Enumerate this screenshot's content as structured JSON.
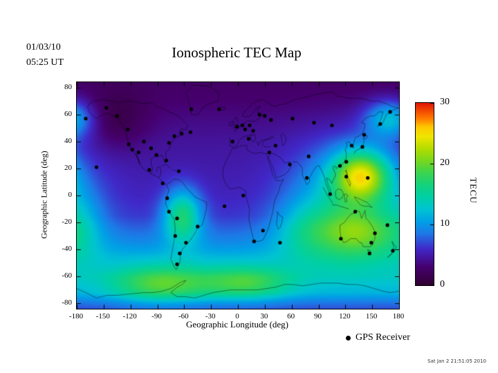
{
  "header": {
    "date": "01/03/10",
    "time": "05:25 UT",
    "title": "Ionospheric TEC Map"
  },
  "axes": {
    "x_label": "Geographic Longitude (deg)",
    "y_label": "Geographic Latitude (deg)",
    "x_ticks": [
      -180,
      -150,
      -120,
      -90,
      -60,
      -30,
      0,
      30,
      60,
      90,
      120,
      150,
      180
    ],
    "y_ticks": [
      -80,
      -60,
      -40,
      -20,
      0,
      20,
      40,
      60,
      80
    ]
  },
  "colorbar": {
    "label": "TECU",
    "min": 0,
    "max": 30,
    "ticks": [
      0,
      10,
      20,
      30
    ]
  },
  "legend": {
    "label": "GPS Receiver"
  },
  "footer": {
    "timestamp": "Sat Jan 2 21:51:05 2010"
  },
  "chart_data": {
    "type": "heatmap",
    "title": "Ionospheric TEC Map",
    "xlabel": "Geographic Longitude (deg)",
    "ylabel": "Geographic Latitude (deg)",
    "units": "TECU",
    "xlim": [
      -180,
      180
    ],
    "ylim": [
      -84,
      84
    ],
    "colorbar_range": [
      0,
      30
    ],
    "colormap_stops": [
      [
        0,
        "#300030"
      ],
      [
        3,
        "#46006e"
      ],
      [
        6,
        "#4028c8"
      ],
      [
        8.5,
        "#1e78e6"
      ],
      [
        10.5,
        "#00a0e6"
      ],
      [
        12.5,
        "#00c3d2"
      ],
      [
        14.5,
        "#00cfa5"
      ],
      [
        16.5,
        "#14d27d"
      ],
      [
        18.5,
        "#3cd450"
      ],
      [
        20.5,
        "#78d71e"
      ],
      [
        22.5,
        "#b4dc00"
      ],
      [
        24.5,
        "#f0e600"
      ],
      [
        26,
        "#ffc800"
      ],
      [
        27.5,
        "#ff7800"
      ],
      [
        30,
        "#e11407"
      ]
    ],
    "field_model": {
      "description": "TEC (TECU) approximated as a latitude base profile plus gaussian enhancements; peak ~25 TECU over SE Asia / west Pacific, green enhancements over Australia, South America and the southern ocean, dark (~2-5 TECU) elsewhere.",
      "base_profile": [
        [
          84,
          2.5
        ],
        [
          70,
          3.0
        ],
        [
          55,
          3.8
        ],
        [
          40,
          4.5
        ],
        [
          20,
          5.0
        ],
        [
          0,
          5.5
        ],
        [
          -15,
          6.3
        ],
        [
          -30,
          8.5
        ],
        [
          -45,
          11.0
        ],
        [
          -60,
          12.0
        ],
        [
          -72,
          11.0
        ],
        [
          -80,
          8.0
        ],
        [
          -84,
          7.0
        ]
      ],
      "blobs": [
        {
          "lon": 138,
          "lat": 15,
          "sigma_lon": 22,
          "sigma_lat": 13,
          "amp": 14
        },
        {
          "lon": 125,
          "lat": -5,
          "sigma_lon": 45,
          "sigma_lat": 30,
          "amp": 8
        },
        {
          "lon": 135,
          "lat": -27,
          "sigma_lon": 30,
          "sigma_lat": 12,
          "amp": 7
        },
        {
          "lon": -62,
          "lat": -15,
          "sigma_lon": 15,
          "sigma_lat": 14,
          "amp": 10.5
        },
        {
          "lon": -85,
          "lat": -66,
          "sigma_lon": 40,
          "sigma_lat": 10,
          "amp": 8
        },
        {
          "lon": 10,
          "lat": -65,
          "sigma_lon": 35,
          "sigma_lat": 9,
          "amp": 7
        },
        {
          "lon": 170,
          "lat": 57,
          "sigma_lon": 20,
          "sigma_lat": 10,
          "amp": 8
        },
        {
          "lon": 75,
          "lat": -25,
          "sigma_lon": 25,
          "sigma_lat": 15,
          "amp": 4
        },
        {
          "lon": -175,
          "lat": -20,
          "sigma_lon": 18,
          "sigma_lat": 18,
          "amp": 3
        },
        {
          "lon": -135,
          "lat": 55,
          "sigma_lon": 25,
          "sigma_lat": 15,
          "amp": -2.5
        }
      ]
    },
    "gps_receivers": [
      [
        -170,
        57
      ],
      [
        -147,
        65
      ],
      [
        -135,
        59
      ],
      [
        -123,
        49
      ],
      [
        -122,
        38
      ],
      [
        -118,
        34
      ],
      [
        -111,
        32
      ],
      [
        -105,
        40
      ],
      [
        -97,
        35
      ],
      [
        -91,
        30
      ],
      [
        -80,
        26
      ],
      [
        -77,
        39
      ],
      [
        -71,
        44
      ],
      [
        -63,
        46
      ],
      [
        -53,
        47
      ],
      [
        -52,
        64
      ],
      [
        -21,
        64
      ],
      [
        -158,
        21
      ],
      [
        -99,
        19
      ],
      [
        -84,
        9
      ],
      [
        -66,
        18
      ],
      [
        -79,
        -2
      ],
      [
        -77,
        -12
      ],
      [
        -68,
        -17
      ],
      [
        -70,
        -30
      ],
      [
        -58,
        -35
      ],
      [
        -65,
        -43
      ],
      [
        -68,
        -51
      ],
      [
        -45,
        -23
      ],
      [
        -15,
        -8
      ],
      [
        -6,
        40
      ],
      [
        -1,
        51
      ],
      [
        5,
        52
      ],
      [
        8,
        49
      ],
      [
        13,
        52
      ],
      [
        12,
        42
      ],
      [
        17,
        48
      ],
      [
        24,
        60
      ],
      [
        30,
        59
      ],
      [
        37,
        56
      ],
      [
        35,
        32
      ],
      [
        42,
        37
      ],
      [
        58,
        23
      ],
      [
        61,
        57
      ],
      [
        77,
        13
      ],
      [
        79,
        29
      ],
      [
        85,
        54
      ],
      [
        103,
        1
      ],
      [
        105,
        52
      ],
      [
        114,
        22
      ],
      [
        121,
        25
      ],
      [
        121,
        14
      ],
      [
        127,
        37
      ],
      [
        139,
        36
      ],
      [
        141,
        45
      ],
      [
        145,
        13
      ],
      [
        159,
        53
      ],
      [
        170,
        62
      ],
      [
        115,
        -32
      ],
      [
        131,
        -12
      ],
      [
        149,
        -35
      ],
      [
        147,
        -43
      ],
      [
        153,
        -28
      ],
      [
        167,
        -22
      ],
      [
        173,
        -41
      ],
      [
        28,
        -26
      ],
      [
        18,
        -34
      ],
      [
        6,
        0
      ],
      [
        47,
        -35
      ]
    ]
  }
}
